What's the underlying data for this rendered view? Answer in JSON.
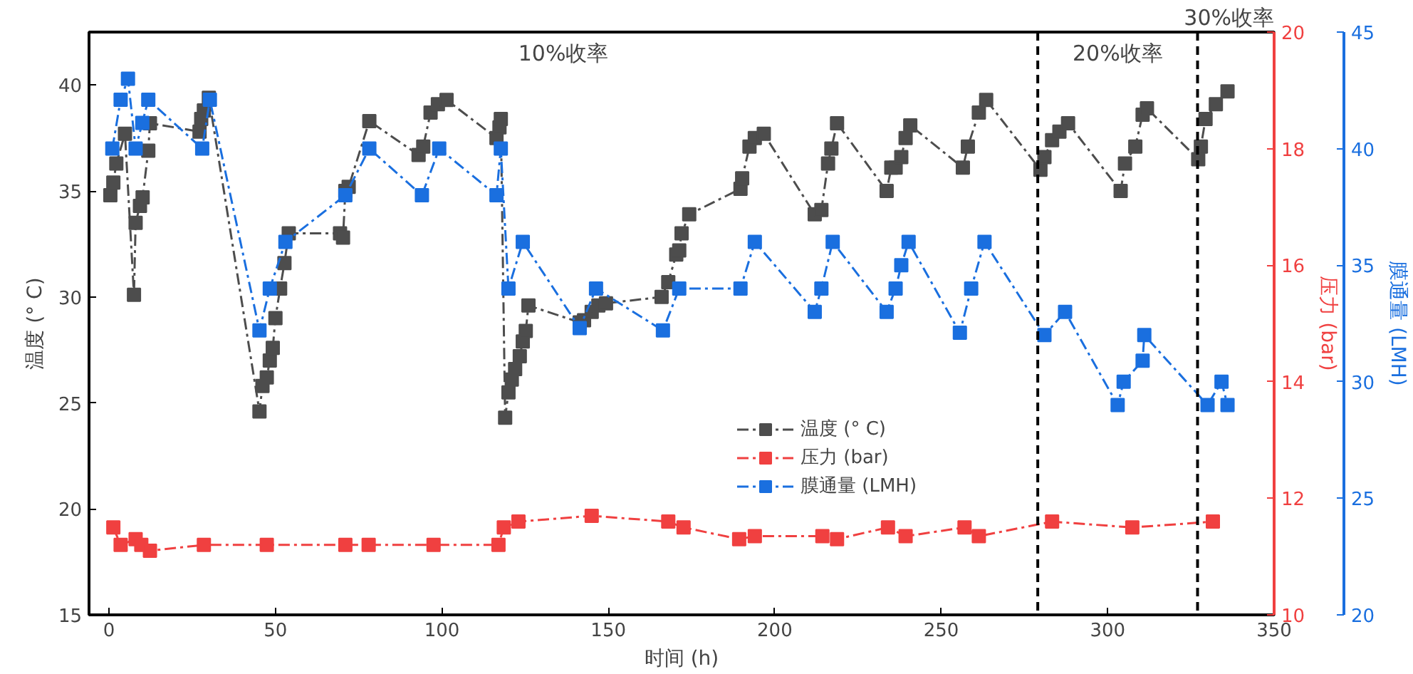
{
  "chart_data": {
    "type": "line",
    "xlabel": "时间 (h)",
    "ylabel": "温度 (° C)",
    "y2label": "压力 (bar)",
    "y3label": "膜通量 (LMH)",
    "xlim": [
      -6,
      350
    ],
    "xticks": [
      0,
      50,
      100,
      150,
      200,
      250,
      300,
      350
    ],
    "ylim": [
      15,
      42.5
    ],
    "yticks": [
      15,
      20,
      25,
      30,
      35,
      40
    ],
    "y2lim": [
      10,
      20
    ],
    "y2ticks": [
      10,
      12,
      14,
      16,
      18,
      20
    ],
    "y3lim": [
      20,
      45
    ],
    "y3ticks": [
      20,
      25,
      30,
      35,
      40,
      45
    ],
    "marker": "square",
    "line_style": "dashed",
    "grid": false,
    "legend": "center",
    "series": [
      {
        "name": "温度 (° C)",
        "color": "#4d4d4d",
        "x": [
          0.4,
          1.3,
          2.2,
          4.8,
          7.5,
          8,
          9.3,
          10.1,
          11.8,
          12.3,
          27.2,
          27.7,
          28.5,
          30,
          45.2,
          46.1,
          47.4,
          48.3,
          49.2,
          50,
          51.4,
          52.7,
          54,
          69.4,
          70.3,
          71,
          72,
          78.2,
          93,
          94.4,
          96.6,
          98.8,
          101.4,
          116.4,
          117.3,
          117.7,
          119,
          120,
          121,
          122,
          123.4,
          124.3,
          125.2,
          126,
          141.4,
          142.7,
          145,
          147,
          149.3,
          166,
          168,
          170.4,
          171.3,
          172,
          174.3,
          189.7,
          190.2,
          192.4,
          194,
          196.7,
          212,
          214,
          216,
          217,
          218.7,
          233.6,
          235,
          236.3,
          238,
          239.3,
          240.7,
          256.5,
          258,
          261.3,
          263.5,
          279.8,
          281,
          283.3,
          285.5,
          288.1,
          303.9,
          305.2,
          308.3,
          310.5,
          311.8,
          327.2,
          328,
          329.4,
          332.5,
          336
        ],
        "values": [
          34.8,
          35.4,
          36.3,
          37.7,
          30.1,
          33.5,
          34.3,
          34.7,
          36.9,
          38.2,
          37.8,
          38.4,
          38.8,
          39.4,
          24.6,
          25.8,
          26.2,
          27.0,
          27.6,
          29.0,
          30.4,
          31.6,
          33.0,
          33.0,
          32.8,
          35.0,
          35.2,
          38.3,
          36.7,
          37.1,
          38.7,
          39.1,
          39.3,
          37.5,
          38.0,
          38.4,
          24.3,
          25.5,
          26.1,
          26.6,
          27.2,
          27.9,
          28.4,
          29.6,
          28.8,
          28.9,
          29.3,
          29.6,
          29.7,
          30.0,
          30.7,
          32.0,
          32.2,
          33.0,
          33.9,
          35.1,
          35.6,
          37.1,
          37.5,
          37.7,
          33.9,
          34.1,
          36.3,
          37.0,
          38.2,
          35.0,
          36.1,
          36.1,
          36.6,
          37.5,
          38.1,
          36.1,
          37.1,
          38.7,
          39.3,
          36.0,
          36.6,
          37.4,
          37.8,
          38.2,
          35.0,
          36.3,
          37.1,
          38.6,
          38.9,
          36.5,
          37.1,
          38.4,
          39.1,
          39.7
        ]
      },
      {
        "name": "压力 (bar)",
        "color": "#f04040",
        "axis": "y2",
        "x": [
          1.3,
          3.5,
          8,
          9.7,
          12.3,
          28.5,
          47.4,
          71,
          78,
          97.5,
          117,
          118.6,
          123,
          145,
          168,
          172.6,
          189.3,
          194,
          214.3,
          218.7,
          234,
          239.3,
          257,
          261.3,
          283.3,
          307.4,
          331.6
        ],
        "values": [
          11.5,
          11.2,
          11.3,
          11.2,
          11.1,
          11.2,
          11.2,
          11.2,
          11.2,
          11.2,
          11.2,
          11.5,
          11.6,
          11.7,
          11.6,
          11.5,
          11.3,
          11.35,
          11.35,
          11.3,
          11.5,
          11.35,
          11.5,
          11.35,
          11.6,
          11.5,
          11.6
        ]
      },
      {
        "name": "膜通量 (LMH)",
        "color": "#1a6fdf",
        "axis": "y3",
        "x": [
          1,
          3.5,
          5.7,
          8,
          10,
          11.8,
          28,
          30.3,
          45.2,
          48.3,
          53,
          71,
          78.2,
          94,
          99.2,
          116.4,
          117.7,
          120,
          124.3,
          141.4,
          146.3,
          166.4,
          171.3,
          189.7,
          194,
          212,
          214,
          217.4,
          233.6,
          236.3,
          238,
          240.2,
          255.6,
          259,
          263,
          281,
          287.2,
          303,
          304.8,
          310.5,
          311,
          330,
          334.2,
          336
        ],
        "values": [
          40.0,
          42.1,
          43.0,
          40.0,
          41.1,
          42.1,
          40.0,
          42.1,
          32.2,
          34.0,
          36.0,
          38.0,
          40.0,
          38.0,
          40.0,
          38.0,
          40.0,
          34.0,
          36.0,
          32.3,
          34.0,
          32.2,
          34.0,
          34.0,
          36.0,
          33.0,
          34.0,
          36.0,
          33.0,
          34.0,
          35.0,
          36.0,
          32.1,
          34.0,
          36.0,
          32.0,
          33.0,
          29.0,
          30.0,
          30.9,
          32.0,
          29.0,
          30.0,
          29.0
        ]
      }
    ],
    "ref_lines": [
      {
        "axis": "x",
        "value": 279,
        "color": "#000000",
        "line_style": "dashed"
      },
      {
        "axis": "x",
        "value": 327,
        "color": "#000000",
        "line_style": "dashed"
      }
    ],
    "annotations": [
      "10%收率",
      "20%收率",
      "30%收率"
    ]
  }
}
